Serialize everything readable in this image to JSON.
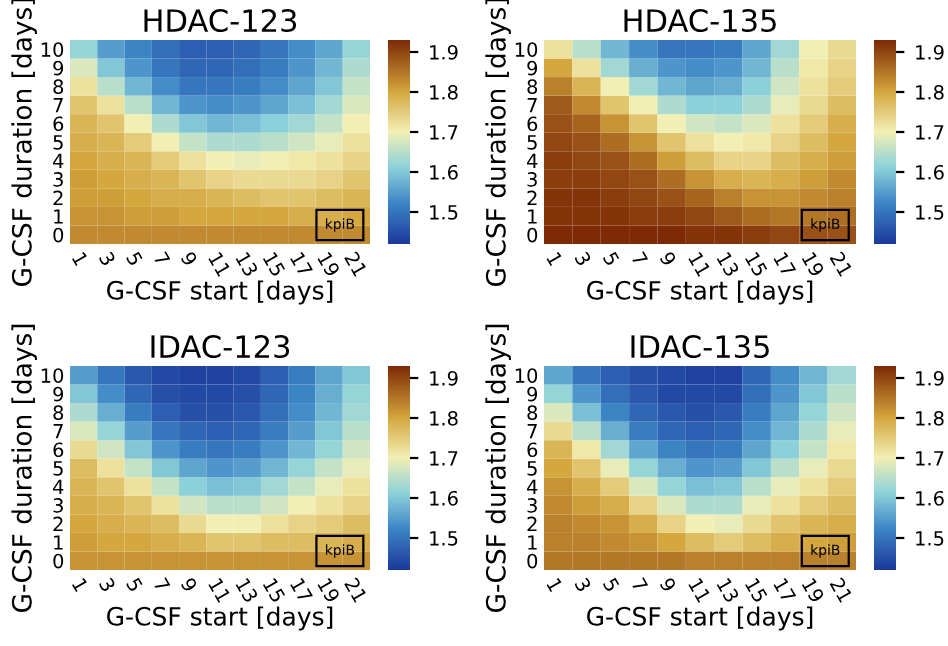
{
  "chart_data": [
    {
      "type": "heatmap",
      "title": "HDAC-123",
      "xlabel": "G-CSF start [days]",
      "ylabel": "G-CSF duration [days]",
      "categories": [
        "1",
        "3",
        "5",
        "7",
        "9",
        "11",
        "13",
        "15",
        "17",
        "19",
        "21"
      ],
      "y_categories": [
        "10",
        "9",
        "8",
        "7",
        "6",
        "5",
        "4",
        "3",
        "2",
        "1",
        "0"
      ],
      "clim": [
        1.42,
        1.93
      ],
      "cticks": [
        1.5,
        1.6,
        1.7,
        1.8,
        1.9
      ],
      "annotations": [
        "kpiB"
      ],
      "cells": [
        [
          1.62,
          1.55,
          1.52,
          1.49,
          1.47,
          1.47,
          1.48,
          1.5,
          1.53,
          1.56,
          1.62
        ],
        [
          1.68,
          1.6,
          1.54,
          1.5,
          1.48,
          1.48,
          1.49,
          1.51,
          1.54,
          1.58,
          1.64
        ],
        [
          1.72,
          1.65,
          1.58,
          1.53,
          1.5,
          1.5,
          1.51,
          1.53,
          1.56,
          1.6,
          1.66
        ],
        [
          1.76,
          1.72,
          1.65,
          1.58,
          1.54,
          1.53,
          1.54,
          1.56,
          1.59,
          1.63,
          1.68
        ],
        [
          1.78,
          1.76,
          1.7,
          1.64,
          1.6,
          1.58,
          1.59,
          1.61,
          1.63,
          1.66,
          1.7
        ],
        [
          1.79,
          1.78,
          1.75,
          1.7,
          1.66,
          1.64,
          1.64,
          1.65,
          1.67,
          1.69,
          1.72
        ],
        [
          1.8,
          1.79,
          1.78,
          1.75,
          1.72,
          1.7,
          1.69,
          1.7,
          1.71,
          1.72,
          1.74
        ],
        [
          1.81,
          1.8,
          1.79,
          1.78,
          1.76,
          1.74,
          1.73,
          1.73,
          1.73,
          1.74,
          1.76
        ],
        [
          1.81,
          1.81,
          1.8,
          1.79,
          1.79,
          1.78,
          1.77,
          1.76,
          1.76,
          1.77,
          1.78
        ],
        [
          1.82,
          1.82,
          1.81,
          1.81,
          1.8,
          1.8,
          1.8,
          1.8,
          1.79,
          1.79,
          1.8
        ],
        [
          1.83,
          1.83,
          1.83,
          1.83,
          1.83,
          1.83,
          1.83,
          1.83,
          1.83,
          1.83,
          1.83
        ]
      ]
    },
    {
      "type": "heatmap",
      "title": "HDAC-135",
      "xlabel": "G-CSF start [days]",
      "ylabel": "G-CSF duration [days]",
      "categories": [
        "1",
        "3",
        "5",
        "7",
        "9",
        "11",
        "13",
        "15",
        "17",
        "19",
        "21"
      ],
      "y_categories": [
        "10",
        "9",
        "8",
        "7",
        "6",
        "5",
        "4",
        "3",
        "2",
        "1",
        "0"
      ],
      "clim": [
        1.42,
        1.93
      ],
      "cticks": [
        1.5,
        1.6,
        1.7,
        1.8,
        1.9
      ],
      "annotations": [
        "kpiB"
      ],
      "cells": [
        [
          1.72,
          1.65,
          1.58,
          1.53,
          1.5,
          1.5,
          1.51,
          1.56,
          1.63,
          1.7,
          1.73
        ],
        [
          1.8,
          1.72,
          1.63,
          1.57,
          1.54,
          1.53,
          1.54,
          1.58,
          1.65,
          1.71,
          1.74
        ],
        [
          1.84,
          1.78,
          1.7,
          1.63,
          1.58,
          1.56,
          1.57,
          1.61,
          1.67,
          1.72,
          1.75
        ],
        [
          1.88,
          1.83,
          1.76,
          1.7,
          1.64,
          1.61,
          1.61,
          1.64,
          1.69,
          1.73,
          1.77
        ],
        [
          1.89,
          1.87,
          1.82,
          1.76,
          1.7,
          1.67,
          1.66,
          1.68,
          1.72,
          1.75,
          1.79
        ],
        [
          1.9,
          1.89,
          1.86,
          1.82,
          1.76,
          1.72,
          1.7,
          1.71,
          1.74,
          1.77,
          1.8
        ],
        [
          1.91,
          1.9,
          1.89,
          1.86,
          1.81,
          1.77,
          1.74,
          1.74,
          1.77,
          1.79,
          1.81
        ],
        [
          1.91,
          1.91,
          1.9,
          1.89,
          1.86,
          1.82,
          1.79,
          1.78,
          1.79,
          1.81,
          1.83
        ],
        [
          1.92,
          1.92,
          1.91,
          1.9,
          1.89,
          1.87,
          1.84,
          1.82,
          1.82,
          1.83,
          1.84
        ],
        [
          1.92,
          1.92,
          1.92,
          1.91,
          1.91,
          1.9,
          1.88,
          1.86,
          1.85,
          1.85,
          1.86
        ],
        [
          1.93,
          1.93,
          1.93,
          1.93,
          1.93,
          1.92,
          1.92,
          1.91,
          1.9,
          1.89,
          1.89
        ]
      ]
    },
    {
      "type": "heatmap",
      "title": "IDAC-123",
      "xlabel": "G-CSF start [days]",
      "ylabel": "G-CSF duration [days]",
      "categories": [
        "1",
        "3",
        "5",
        "7",
        "9",
        "11",
        "13",
        "15",
        "17",
        "19",
        "21"
      ],
      "y_categories": [
        "10",
        "9",
        "8",
        "7",
        "6",
        "5",
        "4",
        "3",
        "2",
        "1",
        "0"
      ],
      "clim": [
        1.42,
        1.93
      ],
      "cticks": [
        1.5,
        1.6,
        1.7,
        1.8,
        1.9
      ],
      "annotations": [
        "kpiB"
      ],
      "cells": [
        [
          1.55,
          1.5,
          1.46,
          1.44,
          1.43,
          1.43,
          1.44,
          1.47,
          1.51,
          1.56,
          1.6
        ],
        [
          1.6,
          1.53,
          1.48,
          1.45,
          1.44,
          1.44,
          1.45,
          1.48,
          1.52,
          1.57,
          1.62
        ],
        [
          1.64,
          1.57,
          1.51,
          1.47,
          1.45,
          1.45,
          1.46,
          1.49,
          1.53,
          1.58,
          1.63
        ],
        [
          1.68,
          1.62,
          1.55,
          1.5,
          1.48,
          1.47,
          1.48,
          1.51,
          1.55,
          1.6,
          1.65
        ],
        [
          1.73,
          1.67,
          1.6,
          1.54,
          1.51,
          1.5,
          1.51,
          1.54,
          1.58,
          1.62,
          1.67
        ],
        [
          1.77,
          1.72,
          1.66,
          1.6,
          1.56,
          1.54,
          1.55,
          1.58,
          1.62,
          1.66,
          1.69
        ],
        [
          1.78,
          1.76,
          1.72,
          1.66,
          1.61,
          1.59,
          1.6,
          1.63,
          1.66,
          1.69,
          1.72
        ],
        [
          1.79,
          1.78,
          1.76,
          1.72,
          1.67,
          1.65,
          1.65,
          1.67,
          1.7,
          1.72,
          1.74
        ],
        [
          1.8,
          1.79,
          1.78,
          1.77,
          1.73,
          1.7,
          1.7,
          1.72,
          1.74,
          1.75,
          1.77
        ],
        [
          1.81,
          1.8,
          1.8,
          1.79,
          1.78,
          1.76,
          1.76,
          1.77,
          1.77,
          1.78,
          1.79
        ],
        [
          1.82,
          1.82,
          1.82,
          1.82,
          1.82,
          1.82,
          1.82,
          1.82,
          1.82,
          1.82,
          1.82
        ]
      ]
    },
    {
      "type": "heatmap",
      "title": "IDAC-135",
      "xlabel": "G-CSF start [days]",
      "ylabel": "G-CSF duration [days]",
      "categories": [
        "1",
        "3",
        "5",
        "7",
        "9",
        "11",
        "13",
        "15",
        "17",
        "19",
        "21"
      ],
      "y_categories": [
        "10",
        "9",
        "8",
        "7",
        "6",
        "5",
        "4",
        "3",
        "2",
        "1",
        "0"
      ],
      "clim": [
        1.42,
        1.93
      ],
      "cticks": [
        1.5,
        1.6,
        1.7,
        1.8,
        1.9
      ],
      "annotations": [
        "kpiB"
      ],
      "cells": [
        [
          1.56,
          1.5,
          1.47,
          1.45,
          1.44,
          1.43,
          1.43,
          1.48,
          1.53,
          1.58,
          1.63
        ],
        [
          1.62,
          1.54,
          1.49,
          1.46,
          1.44,
          1.44,
          1.44,
          1.49,
          1.54,
          1.6,
          1.65
        ],
        [
          1.68,
          1.59,
          1.52,
          1.48,
          1.46,
          1.45,
          1.46,
          1.51,
          1.56,
          1.62,
          1.67
        ],
        [
          1.73,
          1.65,
          1.57,
          1.51,
          1.48,
          1.47,
          1.48,
          1.53,
          1.58,
          1.64,
          1.69
        ],
        [
          1.78,
          1.71,
          1.63,
          1.56,
          1.52,
          1.5,
          1.51,
          1.56,
          1.61,
          1.66,
          1.71
        ],
        [
          1.8,
          1.76,
          1.69,
          1.62,
          1.57,
          1.54,
          1.55,
          1.6,
          1.65,
          1.69,
          1.73
        ],
        [
          1.82,
          1.79,
          1.75,
          1.68,
          1.62,
          1.59,
          1.6,
          1.65,
          1.69,
          1.72,
          1.75
        ],
        [
          1.83,
          1.81,
          1.79,
          1.74,
          1.68,
          1.64,
          1.64,
          1.69,
          1.72,
          1.75,
          1.77
        ],
        [
          1.84,
          1.83,
          1.82,
          1.79,
          1.74,
          1.7,
          1.69,
          1.73,
          1.76,
          1.78,
          1.79
        ],
        [
          1.84,
          1.84,
          1.83,
          1.82,
          1.8,
          1.77,
          1.75,
          1.77,
          1.79,
          1.8,
          1.81
        ],
        [
          1.85,
          1.85,
          1.85,
          1.85,
          1.85,
          1.84,
          1.84,
          1.84,
          1.84,
          1.84,
          1.84
        ]
      ]
    }
  ]
}
